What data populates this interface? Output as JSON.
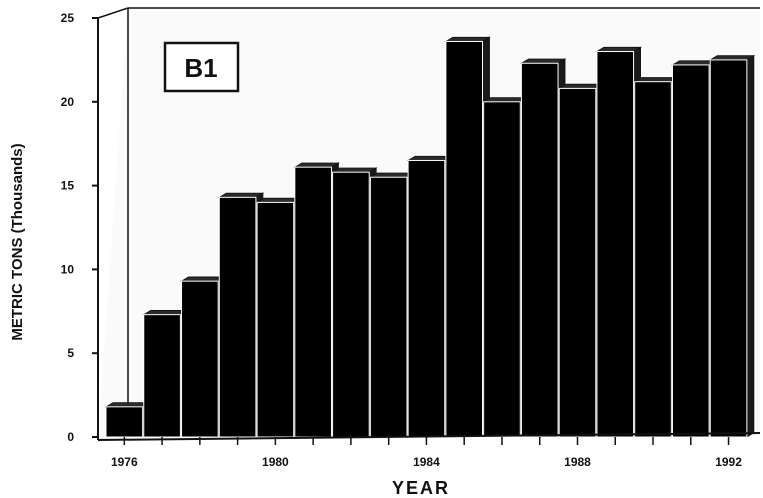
{
  "chart_data": {
    "type": "bar",
    "panel_label": "B1",
    "xlabel": "YEAR",
    "ylabel": "METRIC TONS (Thousands)",
    "categories": [
      "1976",
      "1977",
      "1978",
      "1979",
      "1980",
      "1981",
      "1982",
      "1983",
      "1984",
      "1985",
      "1986",
      "1987",
      "1988",
      "1989",
      "1990",
      "1991",
      "1992"
    ],
    "x_tick_labels": [
      "1976",
      "1980",
      "1984",
      "1988",
      "1992"
    ],
    "values": [
      1.8,
      7.3,
      9.3,
      14.3,
      14.0,
      16.1,
      15.8,
      15.5,
      16.5,
      23.6,
      20.0,
      22.3,
      20.8,
      23.0,
      21.2,
      22.2,
      22.5
    ],
    "y_ticks": [
      "0",
      "5",
      "10",
      "15",
      "20",
      "25"
    ],
    "ylim": [
      0,
      25
    ],
    "grid": false,
    "bar_color": "#000000",
    "style": "3d"
  }
}
